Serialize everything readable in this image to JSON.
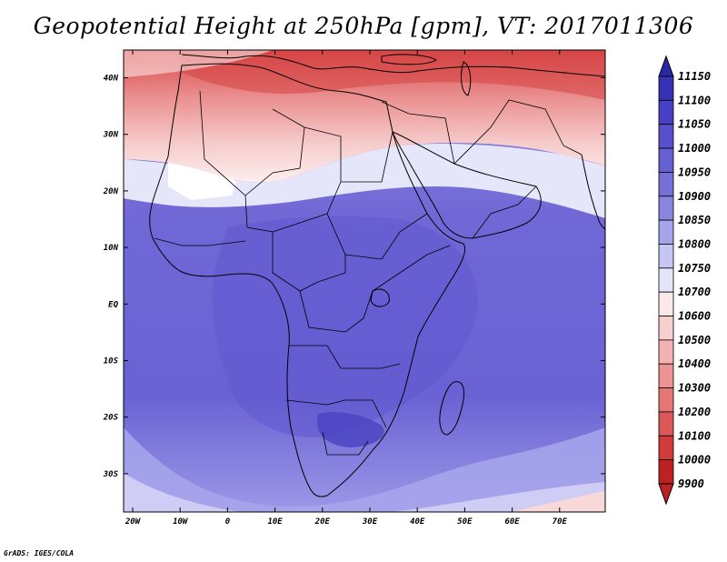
{
  "title": "Geopotential Height at 250hPa [gpm], VT: 2017011306",
  "footer": "GrADS: IGES/COLA",
  "x_ticks": [
    "20W",
    "10W",
    "0",
    "10E",
    "20E",
    "30E",
    "40E",
    "50E",
    "60E",
    "70E"
  ],
  "y_ticks": [
    "40N",
    "30N",
    "20N",
    "10N",
    "EQ",
    "10S",
    "20S",
    "30S"
  ],
  "colorbar": {
    "labels": [
      "11150",
      "11100",
      "11050",
      "11000",
      "10950",
      "10900",
      "10850",
      "10800",
      "10750",
      "10700",
      "10600",
      "10500",
      "10400",
      "10300",
      "10200",
      "10100",
      "10000",
      "9900"
    ],
    "colors": [
      "#2a26a6",
      "#3731b4",
      "#4840c4",
      "#5650cc",
      "#6560d2",
      "#7570d8",
      "#8a86e0",
      "#a6a4ea",
      "#c6c6f4",
      "#e4e4fa",
      "#fbe8e8",
      "#f8cfcf",
      "#f3b2b2",
      "#ec9494",
      "#e47676",
      "#dc5858",
      "#d33a3a",
      "#bc2222"
    ]
  },
  "colors": {
    "land_line": "#000000",
    "frame": "#000000"
  }
}
